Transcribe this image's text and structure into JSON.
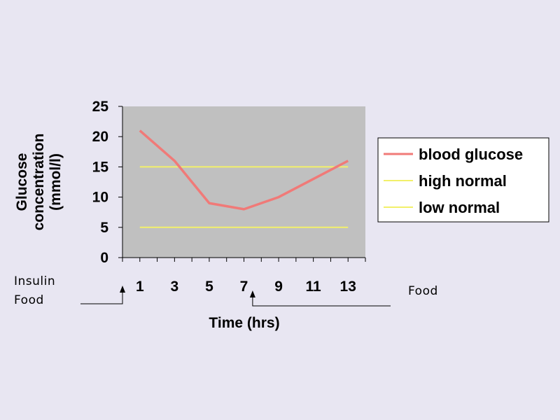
{
  "chart_data": {
    "type": "line",
    "x": [
      1,
      3,
      5,
      7,
      9,
      11,
      13
    ],
    "x_ticks": [
      "1",
      "3",
      "5",
      "7",
      "9",
      "11",
      "13"
    ],
    "y_ticks": [
      "0",
      "5",
      "10",
      "15",
      "20",
      "25"
    ],
    "ylim": [
      0,
      25
    ],
    "xlim": [
      0,
      14
    ],
    "xlabel": "Time (hrs)",
    "ylabel": [
      "Glucose",
      "concentration",
      "(mmol/l)"
    ],
    "grid": false,
    "legend_position": "right",
    "series": [
      {
        "name": "blood glucose",
        "color": "#f07a78",
        "points": [
          [
            1,
            21
          ],
          [
            3,
            16
          ],
          [
            5,
            9
          ],
          [
            7,
            8
          ],
          [
            9,
            10
          ],
          [
            11,
            13
          ],
          [
            13,
            16
          ]
        ]
      },
      {
        "name": "high normal",
        "color": "#f2f06a",
        "points": [
          [
            1,
            15
          ],
          [
            13,
            15
          ]
        ]
      },
      {
        "name": "low normal",
        "color": "#f2f06a",
        "points": [
          [
            1,
            5
          ],
          [
            13,
            5
          ]
        ]
      }
    ],
    "annotations": {
      "insulin_food": [
        "Insulin",
        "Food"
      ],
      "insulin_food_time": 0,
      "food": "Food",
      "food_time": 7.5
    },
    "plot_bg_color": "#c0c0c0"
  }
}
